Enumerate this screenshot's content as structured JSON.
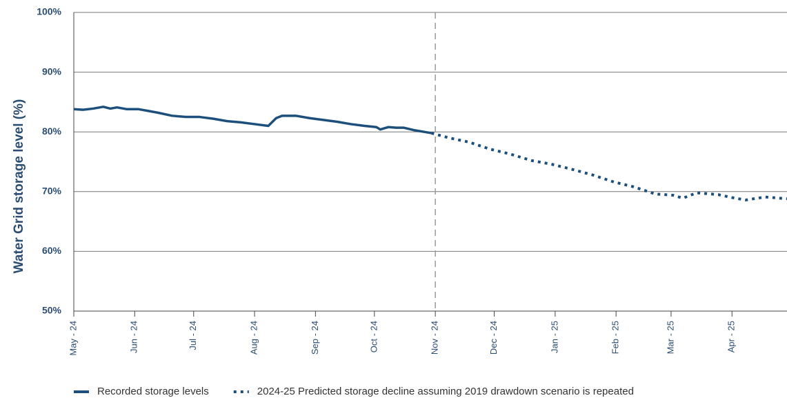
{
  "chart_data": {
    "type": "line",
    "y_label": "Water Grid storage level (%)",
    "x": [
      0,
      4.6,
      9.8,
      15,
      18.6,
      22,
      27,
      33,
      38,
      43,
      50,
      57,
      64,
      71,
      78,
      85,
      92,
      99,
      103,
      106,
      113,
      120,
      127,
      134,
      141,
      148,
      154,
      156,
      160,
      164,
      168,
      173,
      182,
      191,
      201,
      212,
      222,
      233,
      243,
      254,
      264,
      275,
      285,
      296,
      305,
      310,
      317,
      328,
      335,
      342,
      352,
      363
    ],
    "series": [
      {
        "name": "Recorded storage levels",
        "color": "#1d4f7c",
        "style": "solid",
        "values": [
          83.8,
          83.7,
          83.9,
          84.2,
          83.9,
          84.1,
          83.8,
          83.8,
          83.5,
          83.2,
          82.7,
          82.5,
          82.5,
          82.2,
          81.8,
          81.6,
          81.3,
          81.0,
          82.3,
          82.7,
          82.7,
          82.3,
          82.0,
          81.7,
          81.3,
          81.0,
          80.8,
          80.4,
          80.8,
          80.7,
          80.7,
          80.3,
          79.8,
          null,
          null,
          null,
          null,
          null,
          null,
          null,
          null,
          null,
          null,
          null,
          null,
          null,
          null,
          null,
          null,
          null,
          null,
          null
        ]
      },
      {
        "name": "2024-25 Predicted storage decline assuming 2019 drawdown scenario is repeated",
        "color": "#1d4f7c",
        "style": "dotted",
        "values": [
          null,
          null,
          null,
          null,
          null,
          null,
          null,
          null,
          null,
          null,
          null,
          null,
          null,
          null,
          null,
          null,
          null,
          null,
          null,
          null,
          null,
          null,
          null,
          null,
          null,
          null,
          null,
          null,
          null,
          null,
          null,
          null,
          79.8,
          79.0,
          78.3,
          77.1,
          76.3,
          75.2,
          74.6,
          73.7,
          72.8,
          71.6,
          70.8,
          69.6,
          69.4,
          68.9,
          69.8,
          69.5,
          69.0,
          68.6,
          69.1,
          68.8
        ]
      }
    ],
    "xlim": [
      0,
      363
    ],
    "xticks": [
      {
        "value": 0,
        "label": "May - 24"
      },
      {
        "value": 31,
        "label": "Jun - 24"
      },
      {
        "value": 61,
        "label": "Jul - 24"
      },
      {
        "value": 92,
        "label": "Aug - 24"
      },
      {
        "value": 123,
        "label": "Sep - 24"
      },
      {
        "value": 153,
        "label": "Oct - 24"
      },
      {
        "value": 184,
        "label": "Nov - 24"
      },
      {
        "value": 214,
        "label": "Dec - 24"
      },
      {
        "value": 245,
        "label": "Jan - 25"
      },
      {
        "value": 276,
        "label": "Feb - 25"
      },
      {
        "value": 304,
        "label": "Mar - 25"
      },
      {
        "value": 335,
        "label": "Apr - 25"
      }
    ],
    "ylim": [
      50,
      100
    ],
    "yticks": [
      {
        "value": 50,
        "label": "50%"
      },
      {
        "value": 60,
        "label": "60%"
      },
      {
        "value": 70,
        "label": "70%"
      },
      {
        "value": 80,
        "label": "80%"
      },
      {
        "value": 90,
        "label": "90%"
      },
      {
        "value": 100,
        "label": "100%"
      }
    ],
    "grid": true,
    "divider_at": 6,
    "legend": "bottom"
  }
}
